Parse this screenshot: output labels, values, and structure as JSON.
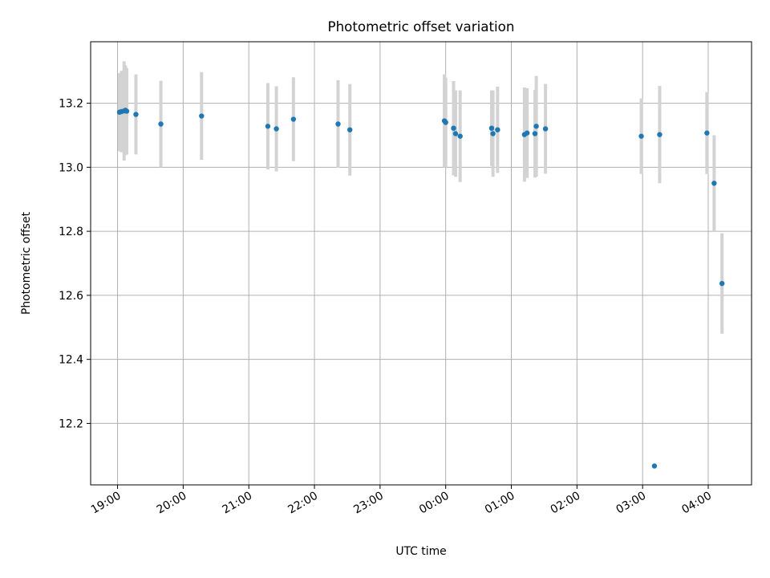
{
  "chart_data": {
    "type": "scatter",
    "title": "Photometric offset variation",
    "xlabel": "UTC time",
    "ylabel": "Photometric offset",
    "x_unit": "hours",
    "xlim": [
      18.59,
      28.66
    ],
    "ylim": [
      12.008,
      13.392
    ],
    "grid": true,
    "x_ticks": [
      {
        "value": 19,
        "label": "19:00"
      },
      {
        "value": 20,
        "label": "20:00"
      },
      {
        "value": 21,
        "label": "21:00"
      },
      {
        "value": 22,
        "label": "22:00"
      },
      {
        "value": 23,
        "label": "23:00"
      },
      {
        "value": 24,
        "label": "00:00"
      },
      {
        "value": 25,
        "label": "01:00"
      },
      {
        "value": 26,
        "label": "02:00"
      },
      {
        "value": 27,
        "label": "03:00"
      },
      {
        "value": 28,
        "label": "04:00"
      }
    ],
    "y_ticks": [
      {
        "value": 12.2,
        "label": "12.2"
      },
      {
        "value": 12.4,
        "label": "12.4"
      },
      {
        "value": 12.6,
        "label": "12.6"
      },
      {
        "value": 12.8,
        "label": "12.8"
      },
      {
        "value": 13.0,
        "label": "13.0"
      },
      {
        "value": 13.2,
        "label": "13.2"
      }
    ],
    "point_color": "#1f77b4",
    "errorbar_color": "#d3d3d3",
    "points": [
      {
        "x": 19.03,
        "y": 13.172,
        "err": 0.122
      },
      {
        "x": 19.06,
        "y": 13.174,
        "err": 0.127
      },
      {
        "x": 19.1,
        "y": 13.176,
        "err": 0.155
      },
      {
        "x": 19.12,
        "y": 13.178,
        "err": 0.14
      },
      {
        "x": 19.14,
        "y": 13.175,
        "err": 0.135
      },
      {
        "x": 19.28,
        "y": 13.165,
        "err": 0.125
      },
      {
        "x": 19.66,
        "y": 13.135,
        "err": 0.135
      },
      {
        "x": 20.28,
        "y": 13.16,
        "err": 0.137
      },
      {
        "x": 21.29,
        "y": 13.128,
        "err": 0.135
      },
      {
        "x": 21.42,
        "y": 13.12,
        "err": 0.133
      },
      {
        "x": 21.68,
        "y": 13.15,
        "err": 0.131
      },
      {
        "x": 22.36,
        "y": 13.135,
        "err": 0.137
      },
      {
        "x": 22.54,
        "y": 13.117,
        "err": 0.143
      },
      {
        "x": 23.98,
        "y": 13.145,
        "err": 0.145
      },
      {
        "x": 24.0,
        "y": 13.14,
        "err": 0.14
      },
      {
        "x": 24.12,
        "y": 13.122,
        "err": 0.147
      },
      {
        "x": 24.15,
        "y": 13.105,
        "err": 0.135
      },
      {
        "x": 24.22,
        "y": 13.097,
        "err": 0.143
      },
      {
        "x": 24.7,
        "y": 13.122,
        "err": 0.118
      },
      {
        "x": 24.72,
        "y": 13.105,
        "err": 0.135
      },
      {
        "x": 24.79,
        "y": 13.117,
        "err": 0.135
      },
      {
        "x": 25.2,
        "y": 13.102,
        "err": 0.147
      },
      {
        "x": 25.24,
        "y": 13.107,
        "err": 0.14
      },
      {
        "x": 25.36,
        "y": 13.105,
        "err": 0.137
      },
      {
        "x": 25.38,
        "y": 13.128,
        "err": 0.157
      },
      {
        "x": 25.52,
        "y": 13.12,
        "err": 0.14
      },
      {
        "x": 26.98,
        "y": 13.097,
        "err": 0.118
      },
      {
        "x": 27.18,
        "y": 12.067,
        "err": 0.0
      },
      {
        "x": 27.26,
        "y": 13.102,
        "err": 0.152
      },
      {
        "x": 27.98,
        "y": 13.107,
        "err": 0.128
      },
      {
        "x": 28.09,
        "y": 12.95,
        "err": 0.15
      },
      {
        "x": 28.21,
        "y": 12.637,
        "err": 0.157
      }
    ]
  }
}
